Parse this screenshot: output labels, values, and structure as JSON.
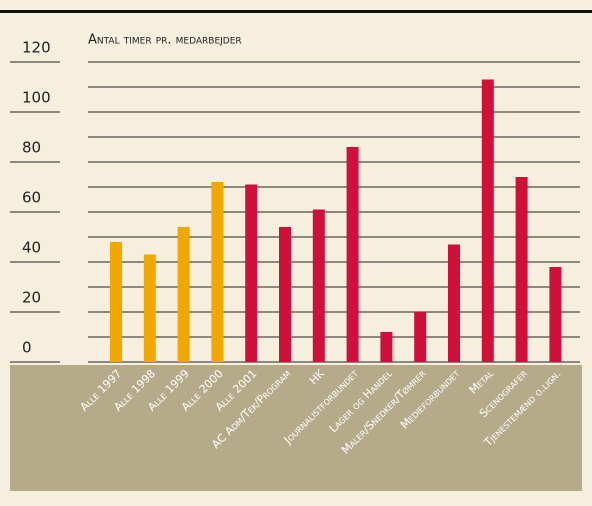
{
  "chart_data": {
    "type": "bar",
    "y_label": "Antal timer pr. medarbejder",
    "categories": [
      "Alle 1997",
      "Alle 1998",
      "Alle 1999",
      "Alle 2000",
      "Alle 2001",
      "AC Adm/Tek/Program",
      "HK",
      "Journalistforbundet",
      "Lager og Handel",
      "Maler/Snedker/Tømrer",
      "Medieforbundet",
      "Metal",
      "Scenografer",
      "Tjenestemænd o.lign."
    ],
    "values": [
      48,
      43,
      54,
      72,
      71,
      54,
      61,
      86,
      12,
      20,
      47,
      113,
      74,
      38
    ],
    "colors": [
      "#f0a800",
      "#f0a800",
      "#f0a800",
      "#f0a800",
      "#d0103a",
      "#d0103a",
      "#d0103a",
      "#d0103a",
      "#d0103a",
      "#d0103a",
      "#d0103a",
      "#d0103a",
      "#d0103a",
      "#d0103a"
    ],
    "ylim": [
      0,
      120
    ],
    "yticks": [
      0,
      20,
      40,
      60,
      80,
      100,
      120
    ],
    "grid": true
  }
}
